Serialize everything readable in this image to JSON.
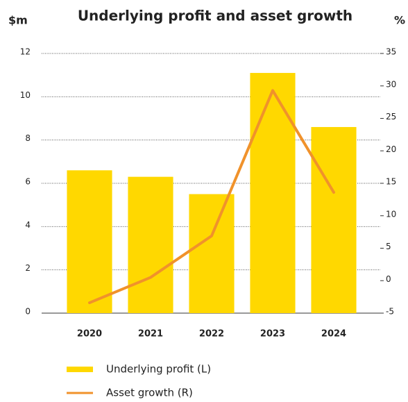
{
  "chart_data": {
    "type": "bar_line",
    "title": "Underlying profit and asset growth",
    "y_label": "$m",
    "y2_label": "%",
    "categories": [
      "2020",
      "2021",
      "2022",
      "2023",
      "2024"
    ],
    "series": [
      {
        "name": "Underlying profit (L)",
        "type": "bar",
        "color": "#FFD800",
        "values": [
          6.6,
          6.3,
          5.5,
          11.1,
          8.6
        ]
      },
      {
        "name": "Asset growth (R)",
        "type": "line",
        "axis": "y2",
        "color": "#F0922B",
        "values": [
          -3.4,
          0.5,
          6.9,
          29.3,
          13.6
        ]
      }
    ],
    "ylim": [
      0,
      12
    ],
    "yticks": [
      0,
      2,
      4,
      6,
      8,
      10,
      12
    ],
    "y2lim": [
      -5,
      35
    ],
    "y2ticks": [
      -5,
      0,
      5,
      10,
      15,
      20,
      25,
      30,
      35
    ],
    "grid": true,
    "legend": "bottom"
  }
}
